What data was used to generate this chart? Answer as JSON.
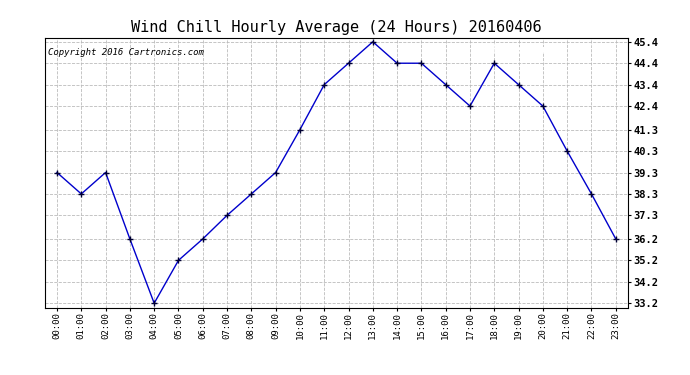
{
  "title": "Wind Chill Hourly Average (24 Hours) 20160406",
  "copyright_text": "Copyright 2016 Cartronics.com",
  "hours": [
    "00:00",
    "01:00",
    "02:00",
    "03:00",
    "04:00",
    "05:00",
    "06:00",
    "07:00",
    "08:00",
    "09:00",
    "10:00",
    "11:00",
    "12:00",
    "13:00",
    "14:00",
    "15:00",
    "16:00",
    "17:00",
    "18:00",
    "19:00",
    "20:00",
    "21:00",
    "22:00",
    "23:00"
  ],
  "values": [
    39.3,
    38.3,
    39.3,
    36.2,
    33.2,
    35.2,
    36.2,
    37.3,
    38.3,
    39.3,
    41.3,
    43.4,
    44.4,
    45.4,
    44.4,
    44.4,
    43.4,
    42.4,
    44.4,
    43.4,
    42.4,
    40.3,
    38.3,
    36.2
  ],
  "ylim_min": 33.2,
  "ylim_max": 45.4,
  "yticks": [
    33.2,
    34.2,
    35.2,
    36.2,
    37.3,
    38.3,
    39.3,
    40.3,
    41.3,
    42.4,
    43.4,
    44.4,
    45.4
  ],
  "line_color": "#0000cc",
  "marker_color": "#000033",
  "bg_color": "#ffffff",
  "grid_color": "#bbbbbb",
  "title_fontsize": 11,
  "copyright_fontsize": 6.5,
  "legend_bg": "#0000aa",
  "legend_fg": "#ffffff",
  "legend_fontsize": 7.5
}
